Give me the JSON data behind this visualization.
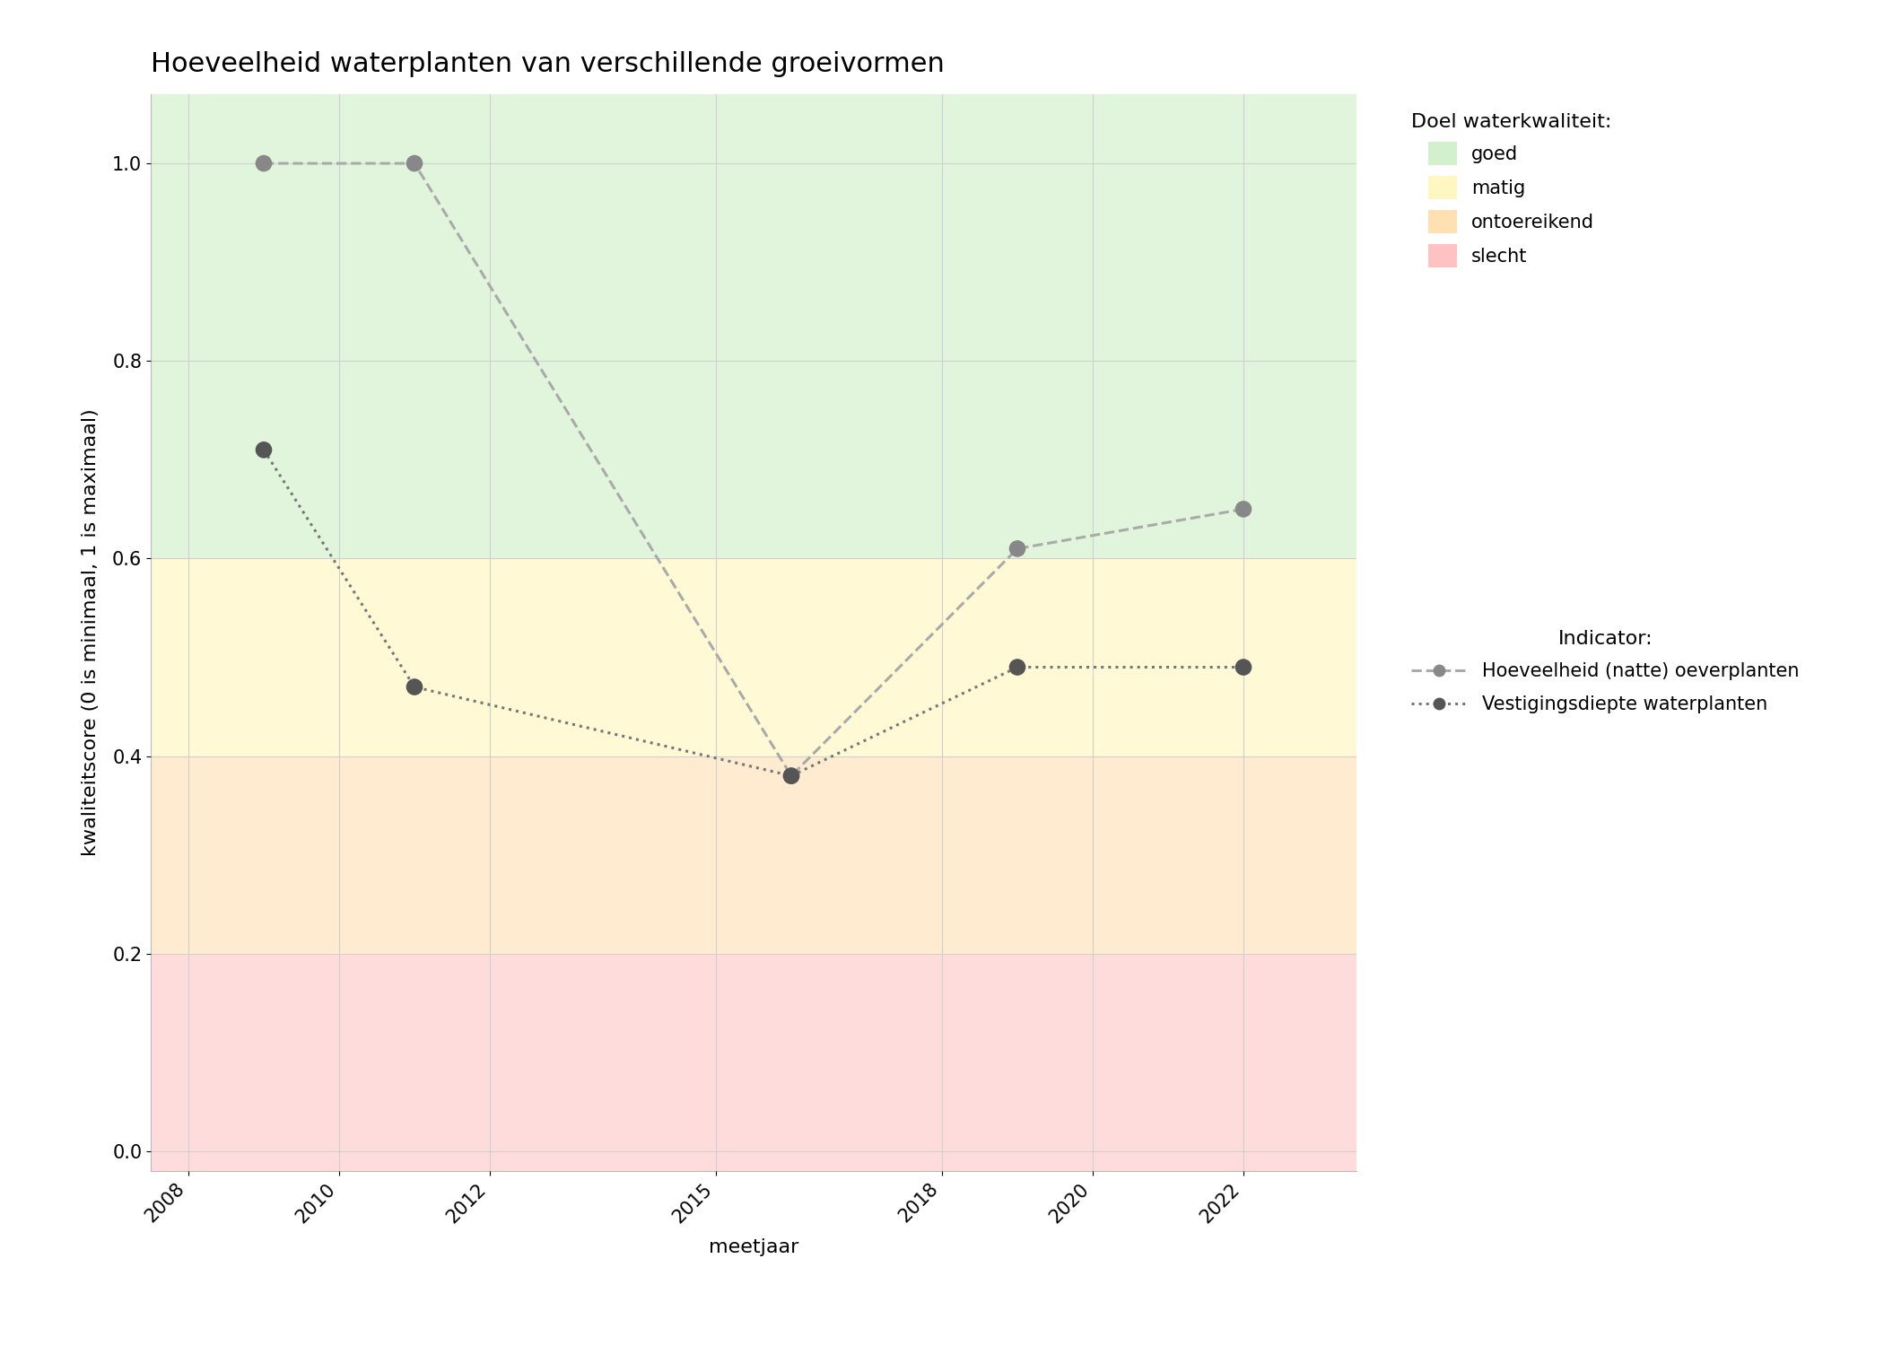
{
  "title": "Hoeveelheid waterplanten van verschillende groeivormen",
  "xlabel": "meetjaar",
  "ylabel": "kwaliteitscore (0 is minimaal, 1 is maximaal)",
  "xlim": [
    2007.5,
    2023.5
  ],
  "ylim": [
    -0.02,
    1.07
  ],
  "xticks": [
    2008,
    2010,
    2012,
    2015,
    2018,
    2020,
    2022
  ],
  "yticks": [
    0.0,
    0.2,
    0.4,
    0.6,
    0.8,
    1.0
  ],
  "background_color": "#ffffff",
  "panel_color": "#ffffff",
  "grid_color": "#d0d0d0",
  "bg_zones": [
    {
      "ymin": -0.02,
      "ymax": 0.2,
      "color": "#ffb3b3",
      "alpha": 0.45
    },
    {
      "ymin": 0.2,
      "ymax": 0.4,
      "color": "#ffd9a0",
      "alpha": 0.5
    },
    {
      "ymin": 0.4,
      "ymax": 0.6,
      "color": "#fff5b3",
      "alpha": 0.55
    },
    {
      "ymin": 0.6,
      "ymax": 1.07,
      "color": "#c8edc0",
      "alpha": 0.55
    }
  ],
  "legend_zones": [
    {
      "label": "goed",
      "color": "#c8edc0",
      "alpha": 0.8
    },
    {
      "label": "matig",
      "color": "#fff5b3",
      "alpha": 0.8
    },
    {
      "label": "ontoereikend",
      "color": "#ffd9a0",
      "alpha": 0.8
    },
    {
      "label": "slecht",
      "color": "#ffb3b3",
      "alpha": 0.8
    }
  ],
  "series": [
    {
      "name": "Hoeveelheid (natte) oeverplanten",
      "x": [
        2009,
        2011,
        2016,
        2019,
        2022
      ],
      "y": [
        1.0,
        1.0,
        0.38,
        0.61,
        0.65
      ],
      "linestyle": "dashed",
      "line_color": "#aaaaaa",
      "dot_color": "#888888",
      "dot_size": 180,
      "linewidth": 2.2,
      "zorder": 3
    },
    {
      "name": "Vestigingsdiepte waterplanten",
      "x": [
        2009,
        2011,
        2016,
        2019,
        2022
      ],
      "y": [
        0.71,
        0.47,
        0.38,
        0.49,
        0.49
      ],
      "linestyle": "dotted",
      "line_color": "#777777",
      "dot_color": "#555555",
      "dot_size": 180,
      "linewidth": 2.2,
      "zorder": 4
    }
  ],
  "title_fontsize": 22,
  "axis_label_fontsize": 16,
  "tick_fontsize": 15,
  "legend_fontsize": 15,
  "legend_title_fontsize": 16
}
